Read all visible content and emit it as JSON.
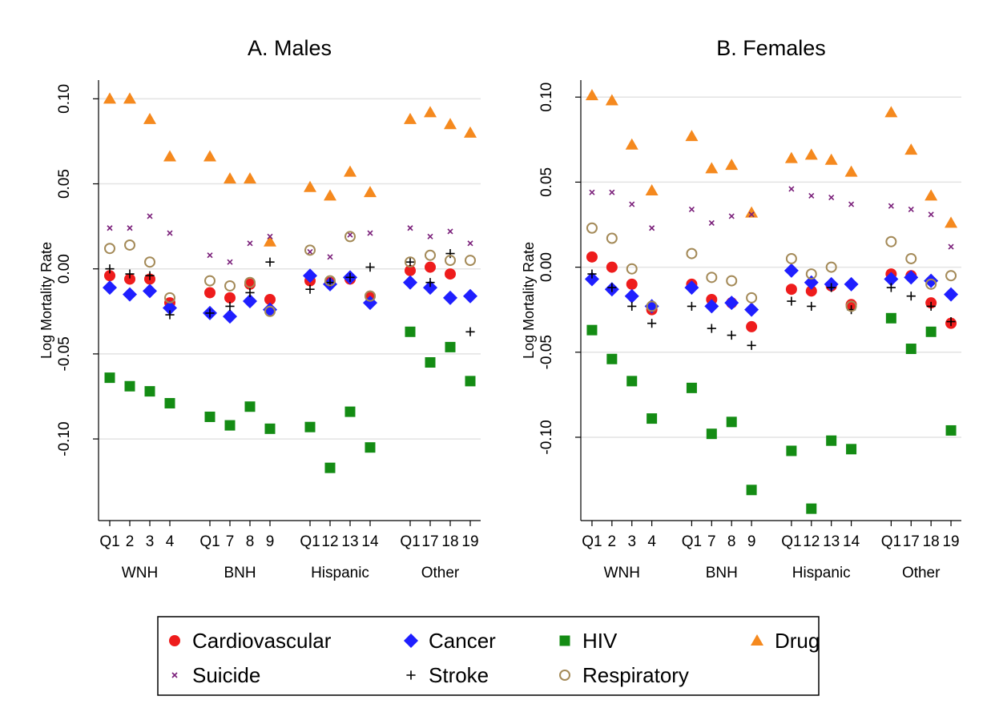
{
  "chart_data": [
    {
      "type": "scatter",
      "title": "A. Males",
      "y_label": "Log Mortality Rate",
      "x": [
        1,
        2,
        3,
        4,
        6,
        7,
        8,
        9,
        11,
        12,
        13,
        14,
        16,
        17,
        18,
        19
      ],
      "xlim": [
        0.44,
        19.52
      ],
      "xticks": [
        {
          "value": 1,
          "label": "Q1"
        },
        2,
        3,
        4,
        {
          "value": 6,
          "label": "Q1"
        },
        7,
        8,
        9,
        {
          "value": 11,
          "label": "Q1"
        },
        12,
        13,
        14,
        {
          "value": 16,
          "label": "Q1"
        },
        17,
        18,
        19
      ],
      "groups": [
        "WNH",
        "BNH",
        "Hispanic",
        "Other"
      ],
      "ylim": [
        -0.148,
        0.111
      ],
      "yticks": [
        {
          "value": 0.1,
          "label": "0.10"
        },
        {
          "value": 0.05,
          "label": "0.05"
        },
        {
          "value": 0,
          "label": "0.00"
        },
        {
          "value": -0.05,
          "label": "-0.05"
        },
        {
          "value": -0.1,
          "label": "-0.10"
        }
      ],
      "grid": true,
      "series": [
        {
          "name": "Cardiovascular",
          "color": "#ee1c1c",
          "marker": "circle",
          "values": [
            -0.004,
            -0.006,
            -0.006,
            -0.02,
            -0.014,
            -0.017,
            -0.009,
            -0.018,
            -0.007,
            -0.008,
            -0.006,
            -0.016,
            -0.001,
            0.001,
            -0.003,
            null
          ]
        },
        {
          "name": "Cancer",
          "color": "#1f1fff",
          "marker": "diamond",
          "values": [
            -0.011,
            -0.015,
            -0.013,
            -0.023,
            -0.026,
            -0.028,
            -0.019,
            -0.024,
            -0.004,
            -0.009,
            -0.005,
            -0.02,
            -0.008,
            -0.011,
            -0.017,
            -0.016
          ]
        },
        {
          "name": "HIV",
          "color": "#148c14",
          "marker": "square",
          "values": [
            -0.064,
            -0.069,
            -0.072,
            -0.079,
            -0.087,
            -0.092,
            -0.081,
            -0.094,
            -0.093,
            -0.117,
            -0.084,
            -0.105,
            -0.037,
            -0.055,
            -0.046,
            -0.066
          ]
        },
        {
          "name": "Drug",
          "color": "#f5891e",
          "marker": "triangle",
          "values": [
            0.1,
            0.1,
            0.088,
            0.066,
            0.066,
            0.053,
            0.053,
            0.016,
            0.048,
            0.043,
            0.057,
            0.045,
            0.088,
            0.092,
            0.085,
            0.08
          ]
        },
        {
          "name": "Suicide",
          "color": "#7a1f7a",
          "marker": "x",
          "values": [
            0.024,
            0.024,
            0.031,
            0.021,
            0.008,
            0.004,
            0.015,
            0.019,
            0.01,
            0.007,
            0.02,
            0.021,
            0.024,
            0.019,
            0.022,
            0.015
          ]
        },
        {
          "name": "Stroke",
          "color": "#000000",
          "marker": "plus",
          "values": [
            0.0,
            -0.003,
            -0.004,
            -0.027,
            -0.026,
            -0.022,
            -0.014,
            0.004,
            -0.012,
            -0.008,
            -0.005,
            0.001,
            0.004,
            -0.008,
            0.009,
            -0.037
          ]
        },
        {
          "name": "Respiratory",
          "color": "#a48a58",
          "marker": "circle-open",
          "values": [
            0.012,
            0.014,
            0.004,
            -0.017,
            -0.007,
            -0.01,
            -0.008,
            -0.025,
            0.011,
            -0.007,
            0.019,
            -0.016,
            0.004,
            0.008,
            0.005,
            0.005
          ]
        }
      ]
    },
    {
      "type": "scatter",
      "title": "B. Females",
      "y_label": "Log Mortality Rate",
      "x": [
        1,
        2,
        3,
        4,
        6,
        7,
        8,
        9,
        11,
        12,
        13,
        14,
        16,
        17,
        18,
        19
      ],
      "xlim": [
        0.44,
        19.52
      ],
      "xticks": [
        {
          "value": 1,
          "label": "Q1"
        },
        2,
        3,
        4,
        {
          "value": 6,
          "label": "Q1"
        },
        7,
        8,
        9,
        {
          "value": 11,
          "label": "Q1"
        },
        12,
        13,
        14,
        {
          "value": 16,
          "label": "Q1"
        },
        17,
        18,
        19
      ],
      "groups": [
        "WNH",
        "BNH",
        "Hispanic",
        "Other"
      ],
      "ylim": [
        -0.149,
        0.11
      ],
      "yticks": [
        {
          "value": 0.1,
          "label": "0.10"
        },
        {
          "value": 0.05,
          "label": "0.05"
        },
        {
          "value": 0,
          "label": "0.00"
        },
        {
          "value": -0.05,
          "label": "-0.05"
        },
        {
          "value": -0.1,
          "label": "-0.10"
        }
      ],
      "grid": true,
      "series": [
        {
          "color": "#ee1c1c",
          "marker": "circle",
          "values": [
            0.006,
            0.0,
            -0.01,
            -0.025,
            -0.01,
            -0.019,
            -0.021,
            -0.035,
            -0.013,
            -0.014,
            -0.011,
            -0.022,
            -0.004,
            -0.005,
            -0.021,
            -0.033
          ]
        },
        {
          "color": "#1f1fff",
          "marker": "diamond",
          "values": [
            -0.007,
            -0.013,
            -0.017,
            -0.023,
            -0.012,
            -0.023,
            -0.021,
            -0.025,
            -0.002,
            -0.009,
            -0.01,
            -0.01,
            -0.007,
            -0.006,
            -0.008,
            -0.016
          ]
        },
        {
          "color": "#148c14",
          "marker": "square",
          "values": [
            -0.037,
            -0.054,
            -0.067,
            -0.089,
            -0.071,
            -0.098,
            -0.091,
            -0.131,
            -0.108,
            -0.142,
            -0.102,
            -0.107,
            -0.03,
            -0.048,
            -0.038,
            -0.096
          ]
        },
        {
          "color": "#f5891e",
          "marker": "triangle",
          "values": [
            0.101,
            0.098,
            0.072,
            0.045,
            0.077,
            0.058,
            0.06,
            0.032,
            0.064,
            0.066,
            0.063,
            0.056,
            0.091,
            0.069,
            0.042,
            0.026
          ]
        },
        {
          "color": "#7a1f7a",
          "marker": "x",
          "values": [
            0.044,
            0.044,
            0.037,
            0.023,
            0.034,
            0.026,
            0.03,
            0.031,
            0.046,
            0.042,
            0.041,
            0.037,
            0.036,
            0.034,
            0.031,
            0.012
          ]
        },
        {
          "color": "#000000",
          "marker": "plus",
          "values": [
            -0.004,
            -0.012,
            -0.023,
            -0.033,
            -0.023,
            -0.036,
            -0.04,
            -0.046,
            -0.02,
            -0.023,
            -0.012,
            -0.025,
            -0.012,
            -0.017,
            -0.023,
            -0.032
          ]
        },
        {
          "color": "#a48a58",
          "marker": "circle-open",
          "values": [
            0.023,
            0.017,
            -0.001,
            -0.023,
            0.008,
            -0.006,
            -0.008,
            -0.018,
            0.005,
            -0.004,
            0.0,
            -0.023,
            0.015,
            0.005,
            -0.01,
            -0.005
          ]
        }
      ]
    }
  ]
}
